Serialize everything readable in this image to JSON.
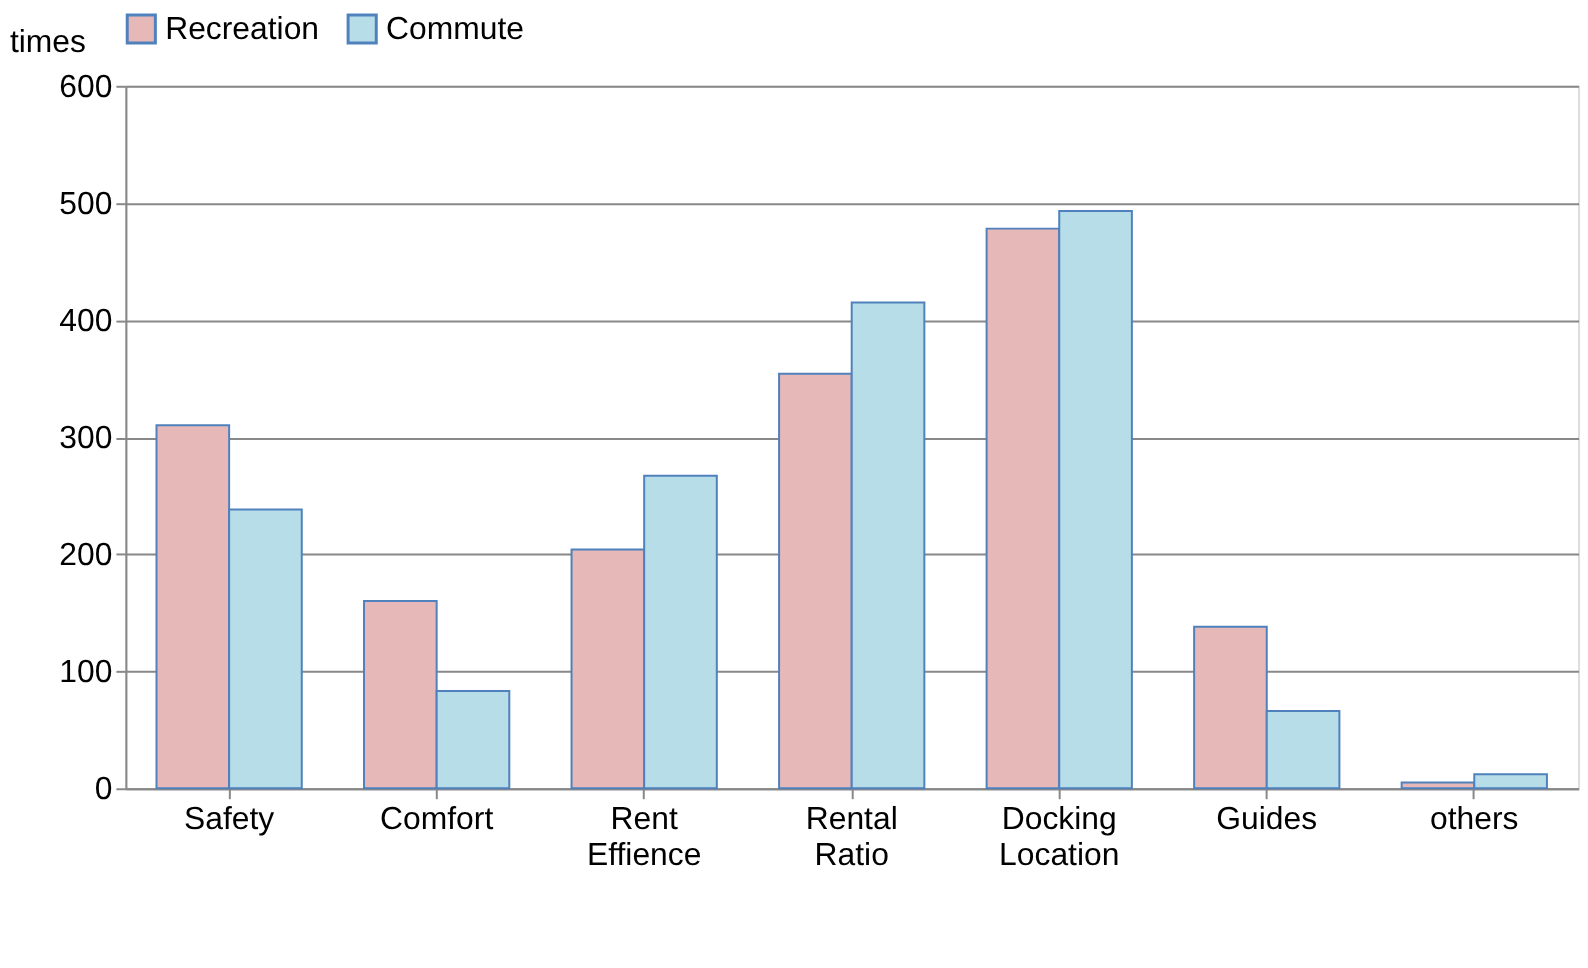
{
  "chart_data": {
    "type": "bar",
    "ylabel": "times",
    "categories": [
      "Safety",
      "Comfort",
      "Rent Effience",
      "Rental Ratio",
      "Docking Location",
      "Guides",
      "others"
    ],
    "series": [
      {
        "name": "Recreation",
        "color": "#e6b8b7",
        "values": [
          310,
          160,
          204,
          354,
          478,
          138,
          5
        ]
      },
      {
        "name": "Commute",
        "color": "#b7dee8",
        "values": [
          238,
          83,
          267,
          415,
          493,
          66,
          12
        ]
      }
    ],
    "ylim": [
      0,
      600
    ],
    "yticks": [
      0,
      100,
      200,
      300,
      400,
      500,
      600
    ],
    "grid": "y",
    "legend": "top"
  }
}
